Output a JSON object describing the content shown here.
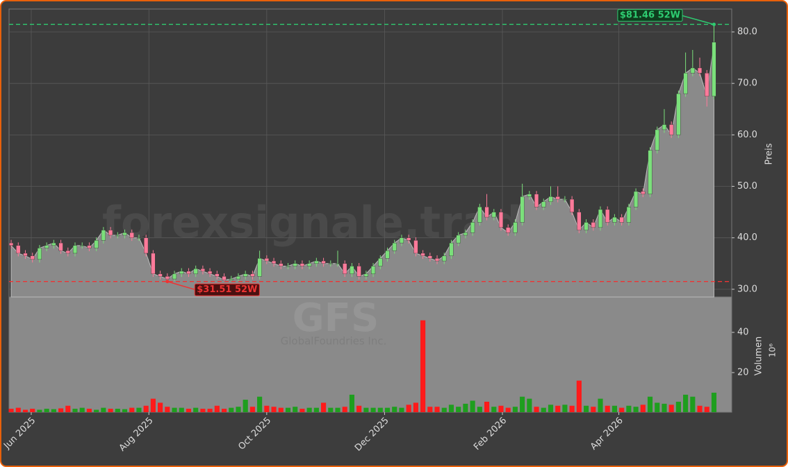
{
  "chart_data": {
    "type": "candlestick",
    "watermark": "forexsignale.trade",
    "symbol": "GFS",
    "company": "GlobalFoundries Inc.",
    "open": [
      39,
      38.5,
      37,
      36.5,
      35.8,
      38,
      38.5,
      39,
      37.5,
      37,
      38.5,
      38.5,
      38,
      39.5,
      41.5,
      40.5,
      40.5,
      41,
      40,
      40,
      37,
      33,
      32.5,
      32,
      33,
      33.5,
      33,
      34,
      33.5,
      33,
      32.5,
      31.8,
      32,
      32.5,
      33,
      32.5,
      36,
      35.5,
      35,
      34.5,
      34.5,
      35,
      34.5,
      35,
      35.5,
      35,
      35,
      35,
      33,
      34.5,
      32.5,
      33,
      34.5,
      36,
      37.5,
      39,
      40,
      39.5,
      37,
      36.5,
      36,
      35.5,
      36.5,
      39,
      40.5,
      41,
      43,
      46,
      44,
      45,
      42,
      41,
      43,
      48,
      48.5,
      46,
      47,
      48,
      47.5,
      47.5,
      45,
      41.5,
      43,
      42,
      45.5,
      43,
      44,
      43,
      46,
      49,
      48.5,
      57,
      61,
      62,
      60,
      68,
      72,
      73,
      72,
      67.5
    ],
    "high": [
      39.6,
      39.1,
      37.6,
      37.1,
      38.6,
      39.1,
      39.6,
      39.6,
      38.1,
      39.1,
      39.1,
      39.1,
      40.1,
      42.1,
      42.1,
      41.1,
      41.6,
      41.6,
      40.6,
      40.6,
      37.6,
      33.6,
      33.1,
      33.6,
      34.1,
      34.1,
      34.6,
      34.6,
      34.1,
      33.6,
      33.1,
      32.6,
      33.1,
      33.6,
      33.6,
      37.5,
      36.6,
      36.1,
      35.6,
      35.1,
      35.6,
      35.6,
      35.6,
      36.1,
      36.1,
      35.6,
      37.5,
      35.6,
      35.1,
      35.1,
      33.6,
      35.1,
      36.6,
      38.1,
      39.6,
      40.6,
      40.6,
      40.1,
      37.6,
      37.1,
      36.6,
      37.1,
      39.6,
      41.1,
      41.6,
      43.6,
      46.6,
      48.5,
      45.6,
      45.6,
      42.6,
      43.6,
      50.5,
      49.1,
      49.1,
      47.6,
      50,
      50,
      48.1,
      48.1,
      45.6,
      43.6,
      43.6,
      46.1,
      46.1,
      44.6,
      44.6,
      46.6,
      49.6,
      49.6,
      57.6,
      61.6,
      65,
      62.6,
      68.6,
      76,
      76.5,
      75,
      72.6,
      81.46
    ],
    "low": [
      37.9,
      36.4,
      35.9,
      35.2,
      35.2,
      37.4,
      37.9,
      36.9,
      36.4,
      36.4,
      37.9,
      37.4,
      37.4,
      38.9,
      39.9,
      39.9,
      39.9,
      39.4,
      39.4,
      36.4,
      32.4,
      31.9,
      31.51,
      31.6,
      32.4,
      32.4,
      32.4,
      32.9,
      32.4,
      31.9,
      31.6,
      31.6,
      31.6,
      31.9,
      31.9,
      31.9,
      34.9,
      34.4,
      33.9,
      33.9,
      33.9,
      33.9,
      33.9,
      34.4,
      34.4,
      34.4,
      34.4,
      32.4,
      32.4,
      31.9,
      31.9,
      32.4,
      33.9,
      35.4,
      36.9,
      38.4,
      38.9,
      36.4,
      35.9,
      35.4,
      34.9,
      34.9,
      35.9,
      38.4,
      39.9,
      40.4,
      42.4,
      43.4,
      43.4,
      41.4,
      40.4,
      40.4,
      42.4,
      47.4,
      45.4,
      45.4,
      46.4,
      46.9,
      46.9,
      44.4,
      40.9,
      40.9,
      41.4,
      41.4,
      42.4,
      42.4,
      42.4,
      42.4,
      45.4,
      47.9,
      47.9,
      56.4,
      60.4,
      59.4,
      59.4,
      67.4,
      71.4,
      71.4,
      65.5,
      66.9
    ],
    "close": [
      38.5,
      37,
      36.5,
      35.8,
      38,
      38.5,
      39,
      37.5,
      37,
      38.5,
      38.5,
      38,
      39.5,
      41.5,
      40.5,
      40.5,
      41,
      40,
      40,
      37,
      33,
      32.5,
      32,
      33,
      33.5,
      33,
      34,
      33.5,
      33,
      32.5,
      31.8,
      32,
      32.5,
      33,
      32.5,
      36,
      35.5,
      35,
      34.5,
      34.5,
      35,
      34.5,
      35,
      35.5,
      35,
      35,
      35,
      33,
      34.5,
      32.5,
      33,
      34.5,
      36,
      37.5,
      39,
      40,
      39.5,
      37,
      36.5,
      36,
      35.5,
      36.5,
      39,
      40.5,
      41,
      43,
      46,
      44,
      45,
      42,
      41,
      43,
      48,
      48.5,
      46,
      47,
      48,
      47.5,
      47.5,
      45,
      41.5,
      43,
      42,
      45.5,
      43,
      44,
      43,
      46,
      49,
      48.5,
      57,
      61,
      62,
      60,
      68,
      72,
      73,
      72,
      67.5,
      78
    ],
    "up_color": "#7be07b",
    "down_color": "#ff7a9a",
    "area_color": "#8a8a8a",
    "xlim": [
      -0.3,
      101.5
    ],
    "xticks": [
      {
        "value": 2.83,
        "label": "Jun 2025"
      },
      {
        "value": 19.4,
        "label": "Aug 2025"
      },
      {
        "value": 36.0,
        "label": "Oct 2025"
      },
      {
        "value": 52.6,
        "label": "Dec 2025"
      },
      {
        "value": 69.2,
        "label": "Feb 2026"
      },
      {
        "value": 85.6,
        "label": "Apr 2026"
      }
    ],
    "ylim": [
      28.5,
      84.45
    ],
    "yticks": [
      {
        "value": 30,
        "label": "30.0"
      },
      {
        "value": 40,
        "label": "40.0"
      },
      {
        "value": 50,
        "label": "50.0"
      },
      {
        "value": 60,
        "label": "60.0"
      },
      {
        "value": 70,
        "label": "70.0"
      },
      {
        "value": 80,
        "label": "80.0"
      }
    ],
    "y_label": "Preis",
    "grid": true,
    "volume": {
      "values": [
        2,
        2.5,
        1.5,
        2,
        1.5,
        2,
        1.8,
        2.2,
        3.5,
        2,
        2.5,
        2,
        1.5,
        2.5,
        2,
        2,
        1.8,
        2.5,
        2.5,
        3.5,
        7,
        5,
        3,
        2.5,
        2.5,
        2,
        2.5,
        2,
        2,
        3.5,
        2,
        2.5,
        3,
        6.5,
        3,
        8,
        3.5,
        3,
        2.5,
        2.5,
        3,
        2,
        2.5,
        2.5,
        5,
        2.5,
        2.5,
        3,
        9,
        3.5,
        2.5,
        2.5,
        2.5,
        2.5,
        3,
        2.5,
        4,
        5,
        46,
        3,
        3,
        2.5,
        4,
        3,
        4.5,
        6,
        3,
        5.5,
        3,
        3.5,
        2.5,
        3,
        8,
        7,
        3,
        2.5,
        4,
        3.5,
        4,
        3.5,
        16,
        3.5,
        3,
        7,
        3.5,
        3.5,
        2.5,
        3.5,
        3,
        4,
        8,
        5,
        4.5,
        4,
        5.5,
        9,
        8,
        3.5,
        3,
        10
      ],
      "ylim": [
        0.3,
        57.6
      ],
      "yticks": [
        20,
        40
      ],
      "label": "Volumen",
      "unit": "10⁶",
      "up_color": "#1e9e1e",
      "down_color": "#ff1a1a"
    },
    "annotations": [
      {
        "text": "$81.46 52W",
        "value": 81.46,
        "color": "#2ecc71",
        "kind": "high"
      },
      {
        "text": "$31.51 52W",
        "value": 31.51,
        "color": "#ee3333",
        "kind": "low"
      }
    ]
  }
}
